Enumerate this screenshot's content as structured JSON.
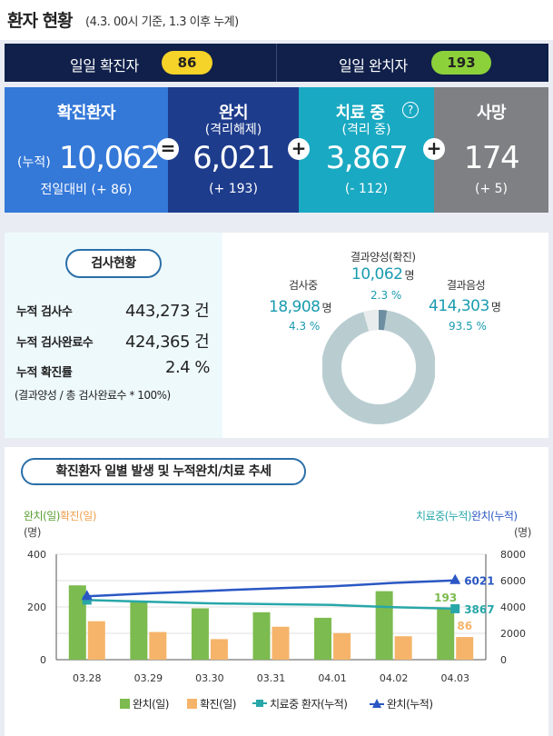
{
  "header": {
    "title": "환자 현황",
    "subtitle": "(4.3. 00시 기준, 1.3 이후 누계)"
  },
  "daily": {
    "confirmed_label": "일일 확진자",
    "confirmed_value": "86",
    "released_label": "일일 완치자",
    "released_value": "193"
  },
  "summary": {
    "confirmed": {
      "title": "확진환자",
      "prefix": "(누적)",
      "value": "10,062",
      "compare": "전일대비 (+ 86)"
    },
    "released": {
      "title": "완치",
      "sub": "(격리해제)",
      "value": "6,021",
      "compare": "(+ 193)"
    },
    "isolated": {
      "title": "치료 중",
      "sub": "(격리 중)",
      "value": "3,867",
      "compare": "(- 112)"
    },
    "deceased": {
      "title": "사망",
      "value": "174",
      "compare": "(+ 5)"
    },
    "op_equals": "=",
    "op_plus": "+",
    "help_icon": "?"
  },
  "tests": {
    "title": "검사현황",
    "rows": [
      {
        "label": "누적 검사수",
        "value": "443,273 건"
      },
      {
        "label": "누적 검사완료수",
        "value": "424,365 건"
      },
      {
        "label": "누적 확진률",
        "value": "2.4 %"
      }
    ],
    "note": "(결과양성 / 총 검사완료수 * 100%)"
  },
  "donut": {
    "positive": {
      "label": "결과양성(확진)",
      "value": "10,062",
      "unit": "명",
      "pct": "2.3 %"
    },
    "testing": {
      "label": "검사중",
      "value": "18,908",
      "unit": "명",
      "pct": "4.3 %"
    },
    "negative": {
      "label": "결과음성",
      "value": "414,303",
      "unit": "명",
      "pct": "93.5 %"
    },
    "colors": {
      "positive": "#6d8ea0",
      "testing": "#e8ecec",
      "negative": "#b9cdd1"
    }
  },
  "trend": {
    "title": "확진환자 일별 발생 및 누적완치/치료 추세",
    "left_axis_label_a": "완치(일)",
    "left_axis_label_b": "확진(일)",
    "left_unit": "(명)",
    "right_axis_label_a": "치료중(누적)",
    "right_axis_label_b": "완치(누적)",
    "right_unit": "(명)"
  },
  "chart_data": {
    "type": "bar",
    "categories": [
      "03.28",
      "03.29",
      "03.30",
      "03.31",
      "04.01",
      "04.02",
      "04.03"
    ],
    "left_ylim": [
      0,
      400
    ],
    "left_ticks": [
      "0",
      "200",
      "400"
    ],
    "right_ylim": [
      0,
      8000
    ],
    "right_ticks": [
      "0",
      "2000",
      "4000",
      "6000",
      "8000"
    ],
    "series": [
      {
        "name": "완치(일)",
        "type": "bar",
        "axis": "left",
        "color": "#7cbb4f",
        "values": [
          282,
          221,
          195,
          180,
          159,
          260,
          193
        ]
      },
      {
        "name": "확진(일)",
        "type": "bar",
        "axis": "left",
        "color": "#f5b46a",
        "values": [
          146,
          105,
          78,
          125,
          101,
          89,
          86
        ]
      },
      {
        "name": "치료중 환자(누적)",
        "type": "line",
        "axis": "right",
        "color": "#28a7a9",
        "values": [
          4523,
          4398,
          4275,
          4216,
          4155,
          3979,
          3867
        ]
      },
      {
        "name": "완치(누적)",
        "type": "line",
        "axis": "right",
        "color": "#2a57c4",
        "values": [
          4811,
          5033,
          5228,
          5408,
          5567,
          5828,
          6021
        ]
      }
    ],
    "annotations": [
      {
        "series": "완치(일)",
        "value": "193",
        "color": "#7cbb4f"
      },
      {
        "series": "확진(일)",
        "value": "86",
        "color": "#f5b46a"
      },
      {
        "series": "완치(누적)",
        "value": "6021",
        "color": "#2a57c4"
      },
      {
        "series": "치료중 환자(누적)",
        "value": "3867",
        "color": "#28a7a9"
      }
    ],
    "legend": [
      "완치(일)",
      "확진(일)",
      "치료중 환자(누적)",
      "완치(누적)"
    ]
  }
}
